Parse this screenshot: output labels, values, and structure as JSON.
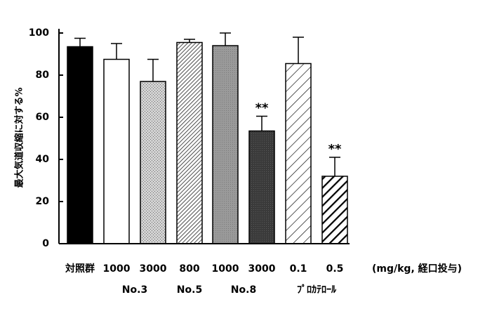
{
  "chart_data": {
    "type": "bar",
    "title": "",
    "xlabel": "",
    "ylabel": "最大気道収縮に対する%",
    "ylim": [
      0,
      100
    ],
    "yticks": [
      0,
      20,
      40,
      60,
      80,
      100
    ],
    "grid": false,
    "legend": "none",
    "unit_note": "(mg/kg, 経口投与)",
    "categories": [
      "対照群",
      "1000",
      "3000",
      "800",
      "1000",
      "3000",
      "0.1",
      "0.5"
    ],
    "values": [
      93.5,
      87.5,
      77,
      95.5,
      94,
      53.5,
      85.5,
      32
    ],
    "errors": [
      4,
      7.5,
      10.5,
      1.5,
      6,
      7,
      12.5,
      9
    ],
    "significance": [
      "",
      "",
      "",
      "",
      "",
      "**",
      "",
      "**"
    ],
    "fills": [
      "solid-black",
      "white",
      "stipple",
      "dense-hatch",
      "gray",
      "dark-gray",
      "sparse-hatch",
      "bold-hatch"
    ],
    "groups": [
      {
        "label": "No.3",
        "from": 1,
        "to": 2
      },
      {
        "label": "No.5",
        "from": 3,
        "to": 3
      },
      {
        "label": "No.8",
        "from": 4,
        "to": 5
      },
      {
        "label": "ﾌﾟﾛｶﾃﾛｰﾙ",
        "from": 6,
        "to": 7
      }
    ]
  }
}
